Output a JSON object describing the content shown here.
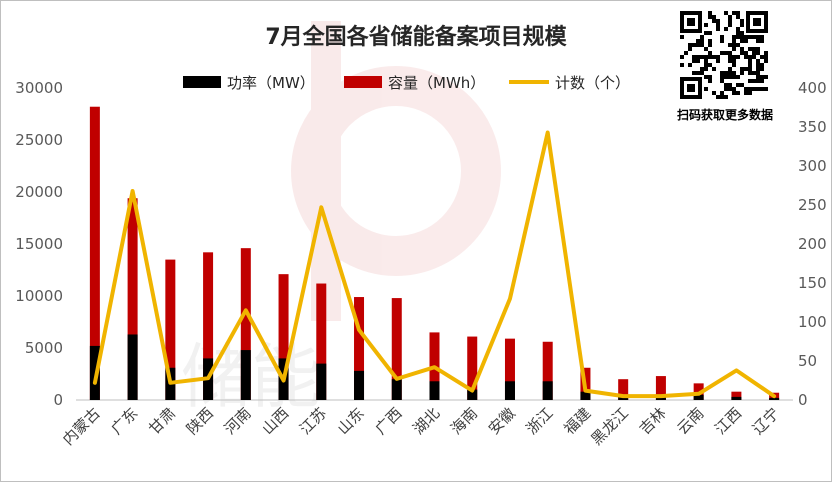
{
  "chart_data": {
    "type": "bar",
    "title": "7月全国各省储能备案项目规模",
    "categories": [
      "内蒙古",
      "广东",
      "甘肃",
      "陕西",
      "河南",
      "山西",
      "江苏",
      "山东",
      "广西",
      "湖北",
      "海南",
      "安徽",
      "浙江",
      "福建",
      "黑龙江",
      "吉林",
      "云南",
      "江西",
      "辽宁"
    ],
    "series": [
      {
        "name": "功率（MW）",
        "kind": "bar",
        "axis": "left",
        "color": "#000000",
        "values": [
          5200,
          6300,
          3100,
          4000,
          4800,
          4000,
          3500,
          2800,
          2000,
          1800,
          1000,
          1800,
          1800,
          800,
          400,
          500,
          500,
          300,
          200
        ]
      },
      {
        "name": "容量（MWh）",
        "kind": "bar",
        "axis": "left",
        "color": "#c00000",
        "values": [
          28200,
          19400,
          13500,
          14200,
          14600,
          12100,
          11200,
          9900,
          9800,
          6500,
          6100,
          5900,
          5600,
          3100,
          2000,
          2300,
          1600,
          800,
          700
        ]
      },
      {
        "name": "计数（个）",
        "kind": "line",
        "axis": "right",
        "color": "#f0b400",
        "values": [
          22,
          268,
          22,
          28,
          115,
          25,
          247,
          90,
          27,
          42,
          12,
          130,
          343,
          12,
          5,
          5,
          8,
          38,
          5
        ]
      }
    ],
    "y_left": {
      "ticks": [
        0,
        5000,
        10000,
        15000,
        20000,
        25000,
        30000
      ],
      "range": [
        0,
        30000
      ]
    },
    "y_right": {
      "ticks": [
        0,
        50,
        100,
        150,
        200,
        250,
        300,
        350,
        400
      ],
      "range": [
        0,
        400
      ]
    },
    "legend_position": "top",
    "grid": false
  },
  "legend": [
    "功率（MW）",
    "容量（MWh）",
    "计数（个）"
  ],
  "qr_caption": "扫码获取更多数据",
  "watermark_text": "储能"
}
